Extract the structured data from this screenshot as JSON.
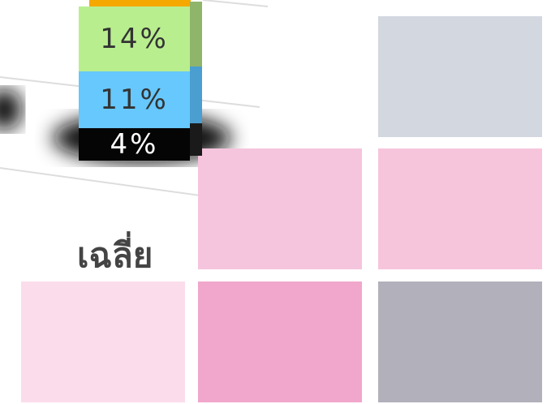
{
  "stack": {
    "segments": [
      {
        "label": "14%",
        "color": "#b9ee8f",
        "side": "#8fb56a"
      },
      {
        "label": "11%",
        "color": "#66c8fc",
        "side": "#4a9ed0"
      },
      {
        "label": "4%",
        "color": "#050505",
        "side": "#1a1a1a"
      }
    ],
    "top_color": "#f5a800"
  },
  "caption": "เฉลี่ย",
  "tiles": [
    "#d3d7df",
    "#f5c4dd",
    "#f6c5dc",
    "#fbdceb",
    "#f1a6cb",
    "#b2b0bb"
  ]
}
